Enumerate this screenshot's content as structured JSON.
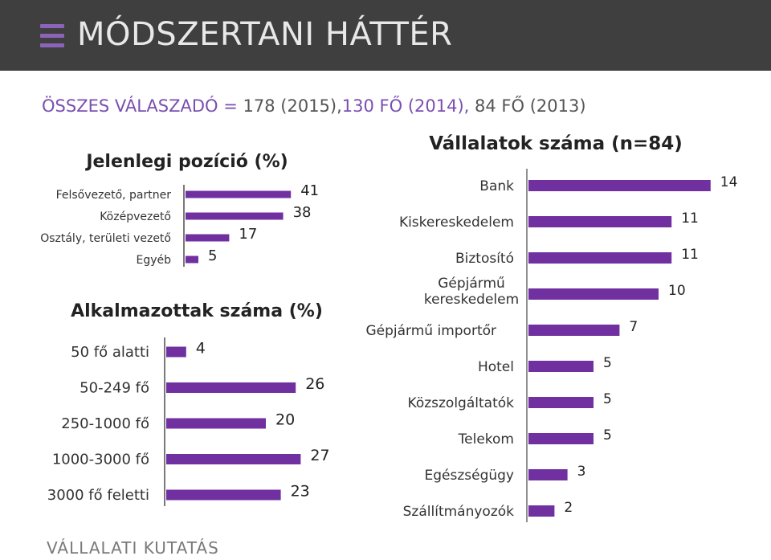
{
  "header": {
    "title": "MÓDSZERTANI HÁTTÉR",
    "icon": "menu-icon",
    "bg": "#3f3f3f",
    "accent": "#7030a0"
  },
  "subtitle": {
    "part1": "ÖSSZES VÁLASZADÓ = ",
    "part2": "178 (2015),",
    "part3": "130 FŐ (2014), ",
    "part4": "84 FŐ (2013)"
  },
  "footer": {
    "text": "VÁLLALATI KUTATÁS"
  },
  "chart_data": [
    {
      "type": "bar",
      "orientation": "horizontal",
      "title": "Jelenlegi pozíció (%)",
      "categories": [
        "Felsővezető, partner",
        "Középvezető",
        "Osztály, területi vezető",
        "Egyéb"
      ],
      "values": [
        41,
        38,
        17,
        5
      ],
      "color": "#7030a0"
    },
    {
      "type": "bar",
      "orientation": "horizontal",
      "title": "Alkalmazottak száma (%)",
      "categories": [
        "50 fő alatti",
        "50-249 fő",
        "250-1000 fő",
        "1000-3000 fő",
        "3000 fő feletti"
      ],
      "values": [
        4,
        26,
        20,
        27,
        23
      ],
      "color": "#7030a0"
    },
    {
      "type": "bar",
      "orientation": "horizontal",
      "title": "Vállalatok száma (n=84)",
      "categories": [
        "Bank",
        "Kiskereskedelem",
        "Biztosító",
        "Gépjármű kereskedelem",
        "Gépjármű importőr",
        "Hotel",
        "Közszolgáltatók",
        "Telekom",
        "Egészségügy",
        "Szállítmányozók"
      ],
      "values": [
        14,
        11,
        11,
        10,
        7,
        5,
        5,
        5,
        3,
        2
      ],
      "color": "#7030a0"
    }
  ]
}
